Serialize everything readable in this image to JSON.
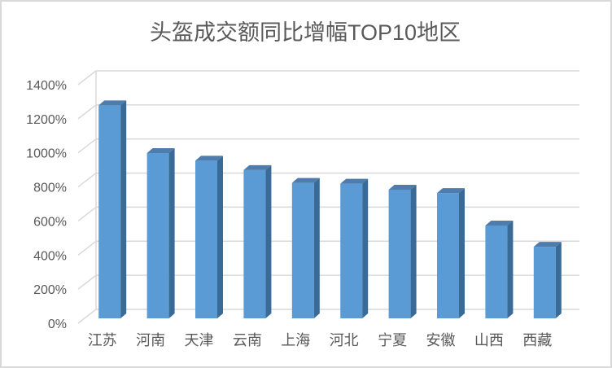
{
  "chart_data": {
    "type": "bar",
    "variant": "3d-column",
    "title": "头盔成交额同比增幅TOP10地区",
    "categories": [
      "江苏",
      "河南",
      "天津",
      "云南",
      "上海",
      "河北",
      "宁夏",
      "安徽",
      "山西",
      "西藏"
    ],
    "values": [
      1250,
      970,
      925,
      870,
      795,
      790,
      755,
      735,
      545,
      420
    ],
    "unit": "%",
    "xlabel": "",
    "ylabel": "",
    "ylim": [
      0,
      1400
    ],
    "ytick_step": 200,
    "ytick_labels": [
      "0%",
      "200%",
      "400%",
      "600%",
      "800%",
      "1000%",
      "1200%",
      "1400%"
    ],
    "grid": true,
    "legend": false
  },
  "colors": {
    "bar_front": "#5B9BD5",
    "bar_top": "#4E7CAC",
    "bar_side": "#3A6A96",
    "gridline": "#D9D9D9",
    "axis_text": "#595959",
    "title_text": "#595959",
    "frame_border": "#D9D9D9",
    "background": "#FFFFFF"
  }
}
